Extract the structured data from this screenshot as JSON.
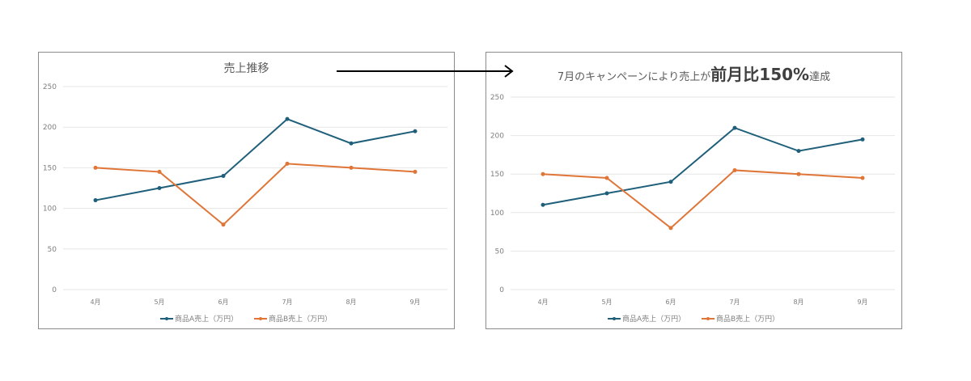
{
  "chart_data": [
    {
      "type": "line",
      "title": "売上推移",
      "categories": [
        "4月",
        "5月",
        "6月",
        "7月",
        "8月",
        "9月"
      ],
      "series": [
        {
          "name": "商品A売上（万円）",
          "values": [
            110,
            125,
            140,
            210,
            180,
            195
          ],
          "color": "#1f5f7a"
        },
        {
          "name": "商品B売上（万円）",
          "values": [
            150,
            145,
            80,
            155,
            150,
            145
          ],
          "color": "#e07538"
        }
      ],
      "ylim": [
        0,
        250
      ],
      "yticks": [
        0,
        50,
        100,
        150,
        200,
        250
      ],
      "grid": true,
      "legend": "bottom"
    },
    {
      "type": "line",
      "title": "7月のキャンペーンにより売上が前月比150%達成",
      "title_parts": {
        "pre": "7月のキャンペーンにより売上が",
        "emphasis": "前月比150%",
        "post": "達成"
      },
      "categories": [
        "4月",
        "5月",
        "6月",
        "7月",
        "8月",
        "9月"
      ],
      "series": [
        {
          "name": "商品A売上（万円）",
          "values": [
            110,
            125,
            140,
            210,
            180,
            195
          ],
          "color": "#1f5f7a"
        },
        {
          "name": "商品B売上（万円）",
          "values": [
            150,
            145,
            80,
            155,
            150,
            145
          ],
          "color": "#e07538"
        }
      ],
      "ylim": [
        0,
        250
      ],
      "yticks": [
        0,
        50,
        100,
        150,
        200,
        250
      ],
      "grid": true,
      "legend": "bottom"
    }
  ],
  "annotation": {
    "type": "arrow",
    "from": "chart-1-title",
    "to": "chart-2-title"
  }
}
